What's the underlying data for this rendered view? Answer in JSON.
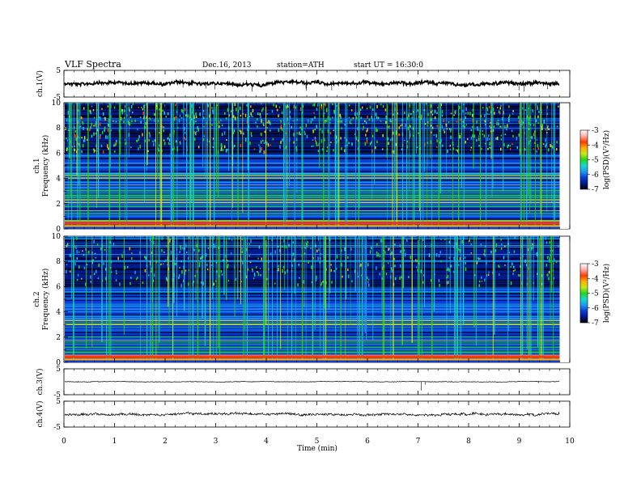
{
  "header": {
    "title": "VLF Spectra",
    "date": "Dec.16, 2013",
    "station": "station=ATH",
    "start": "start  UT =   16:30:0"
  },
  "colors": {
    "colormap": [
      "#000000",
      "#001a8c",
      "#0a3fd6",
      "#1a9cf0",
      "#18d8d0",
      "#22d61c",
      "#c8e81a",
      "#ffb000",
      "#ff3a00",
      "#ffb0a8",
      "#ffffff"
    ],
    "trace": "#000000"
  },
  "chart_data": [
    {
      "type": "line",
      "ylabel": "ch.1(V)",
      "ylim": [
        -5,
        5
      ],
      "yticks": [
        "5",
        "-5"
      ],
      "baseline_v": 0.2
    },
    {
      "type": "heatmap",
      "ylabel_top": "ch.1",
      "ylabel": "Frequency (kHz)",
      "ylim": [
        0,
        10
      ],
      "yticks": [
        "0",
        "2",
        "4",
        "6",
        "8",
        "10"
      ],
      "colorbar": {
        "label": "log(PSD)(V²/Hz)",
        "range": [
          -7,
          -3
        ],
        "ticks": [
          "-3",
          "-4",
          "-5",
          "-6",
          "-7"
        ]
      },
      "dark_band_above_khz": 6.0
    },
    {
      "type": "heatmap",
      "ylabel_top": "ch.2",
      "ylabel": "Frequency (kHz)",
      "ylim": [
        0,
        10
      ],
      "yticks": [
        "0",
        "2",
        "4",
        "6",
        "8",
        "10"
      ],
      "colorbar": {
        "label": "log(PSD)(V²/Hz)",
        "range": [
          -7,
          -3
        ],
        "ticks": [
          "-3",
          "-4",
          "-5",
          "-6",
          "-7"
        ]
      },
      "dark_band_above_khz": 6.0
    },
    {
      "type": "line",
      "ylabel": "ch.3(V)",
      "ylim": [
        -5,
        5
      ],
      "yticks": [
        "5",
        "-5"
      ],
      "baseline_v": 0.0
    },
    {
      "type": "line",
      "ylabel": "ch.4(V)",
      "ylim": [
        -5,
        5
      ],
      "yticks": [
        "5",
        "-5"
      ],
      "baseline_v": -0.1
    }
  ],
  "xaxis": {
    "label": "Time (min)",
    "range": [
      0,
      10
    ],
    "ticks": [
      "0",
      "1",
      "2",
      "3",
      "4",
      "5",
      "6",
      "7",
      "8",
      "9",
      "10"
    ],
    "data_end_min": 9.8
  }
}
